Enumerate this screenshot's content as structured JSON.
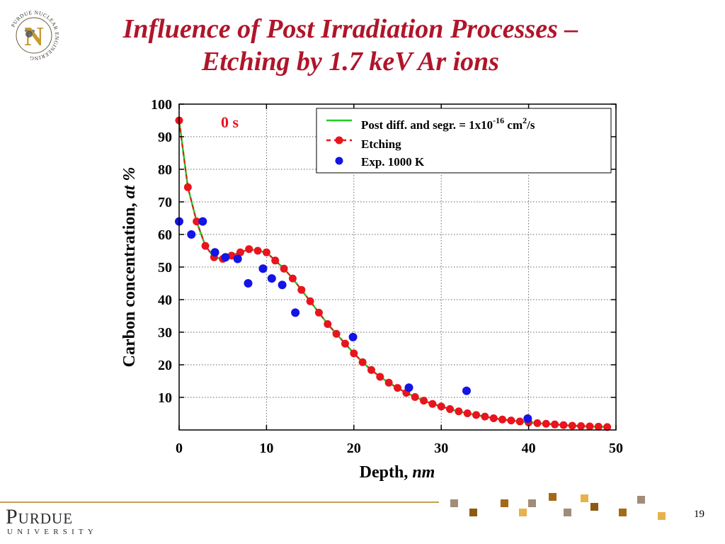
{
  "slide": {
    "title_line1": "Influence of Post Irradiation Processes –",
    "title_line2": "Etching by 1.7 keV Ar ions",
    "page_number": "19",
    "logo_ring_text": "PURDUE NUCLEAR ENGINEERING",
    "logo_letter": "N",
    "footer_brand": "Purdue",
    "footer_sub": "UNIVERSITY"
  },
  "colors": {
    "title": "#b0152a",
    "etching": "#e8141e",
    "experiment": "#1414e6",
    "diffusion": "#22cc22",
    "annotation": "#e8141e",
    "gold_light": "#e8b24a",
    "gold_dark": "#8c5a10",
    "taupe": "#a08c78"
  },
  "chart_data": {
    "type": "line",
    "xlabel": "Depth, ",
    "xlabel_italic": "nm",
    "ylabel": "Carbon concentration, ",
    "ylabel_italic": "at %",
    "xlim": [
      0,
      50
    ],
    "ylim": [
      0,
      100
    ],
    "x_ticks": [
      "0",
      "10",
      "20",
      "30",
      "40",
      "50"
    ],
    "y_ticks": [
      "10",
      "20",
      "30",
      "40",
      "50",
      "60",
      "70",
      "80",
      "90",
      "100"
    ],
    "grid": true,
    "annotation": "0 s",
    "legend_position": "top-right",
    "legend": {
      "diffusion": {
        "text": "Post diff. and segr. = 1x10",
        "exp": "-16",
        "unit": " cm",
        "unit_exp": "2",
        "tail": "/s"
      },
      "etching": "Etching",
      "experiment": "Exp. 1000 K"
    },
    "series": [
      {
        "name": "Etching",
        "style": "red-dashed-markers",
        "x": [
          0,
          1,
          2,
          3,
          4,
          5,
          6,
          7,
          8,
          9,
          10,
          11,
          12,
          13,
          14,
          15,
          16,
          17,
          18,
          19,
          20,
          21,
          22,
          23,
          24,
          25,
          26,
          27,
          28,
          29,
          30,
          31,
          32,
          33,
          34,
          35,
          36,
          37,
          38,
          39,
          40,
          41,
          42,
          43,
          44,
          45,
          46,
          47,
          48,
          49
        ],
        "y": [
          95,
          74.5,
          64,
          56.5,
          53,
          52.5,
          53.5,
          54.5,
          55.5,
          55,
          54.5,
          52,
          49.5,
          46.5,
          43,
          39.5,
          36,
          32.5,
          29.5,
          26.5,
          23.5,
          20.8,
          18.4,
          16.3,
          14.5,
          12.9,
          11.4,
          10.1,
          9,
          8,
          7.2,
          6.4,
          5.7,
          5.1,
          4.6,
          4.1,
          3.6,
          3.2,
          2.9,
          2.6,
          2.3,
          2.1,
          1.9,
          1.7,
          1.5,
          1.3,
          1.2,
          1.1,
          1,
          0.9
        ]
      },
      {
        "name": "Exp. 1000 K",
        "style": "blue-markers",
        "x": [
          0,
          1.4,
          2.7,
          4.1,
          5.3,
          6.7,
          7.9,
          9.6,
          10.6,
          11.8,
          13.3,
          19.9,
          26.3,
          32.9,
          39.9
        ],
        "y": [
          64,
          60,
          64,
          54.5,
          53,
          52.5,
          45,
          49.5,
          46.5,
          44.5,
          36,
          28.5,
          13,
          12,
          3.5
        ]
      }
    ]
  }
}
